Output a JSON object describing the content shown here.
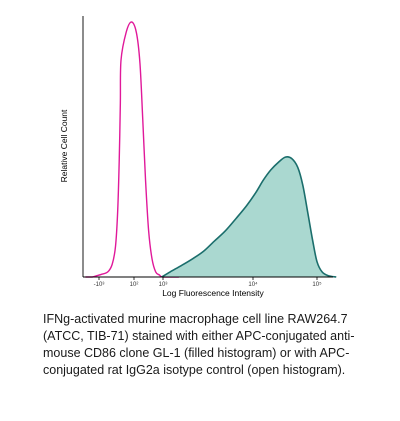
{
  "chart_data": {
    "type": "area",
    "xlabel": "Log Fluorescence Intensity",
    "ylabel": "Relative Cell Count",
    "x_scale": "biexponential",
    "x_ticks": [
      {
        "value": -1000,
        "label": "-10³"
      },
      {
        "value": 100,
        "label": "10²"
      },
      {
        "value": 1000,
        "label": "10³"
      },
      {
        "value": 10000,
        "label": "10⁴"
      },
      {
        "value": 100000,
        "label": "10⁵"
      }
    ],
    "ylim": [
      0,
      1
    ],
    "grid": false,
    "legend": "none",
    "series": [
      {
        "style": "open",
        "color": "#e0199a",
        "x": [
          -2800,
          -1900,
          -1300,
          -900,
          -600,
          -400,
          -250,
          -150,
          -80,
          -30,
          0,
          40,
          80,
          120,
          160,
          200,
          250,
          320,
          420,
          560,
          750,
          1000,
          1500
        ],
        "y": [
          0.0,
          0.0,
          0.005,
          0.01,
          0.02,
          0.05,
          0.12,
          0.26,
          0.46,
          0.68,
          0.85,
          0.96,
          1.0,
          0.96,
          0.84,
          0.62,
          0.38,
          0.18,
          0.07,
          0.02,
          0.008,
          0.0,
          0.0
        ]
      },
      {
        "style": "filled",
        "color": "#1b6e6c",
        "fill": "#aad8d0",
        "x": [
          900,
          1200,
          1600,
          2100,
          2800,
          3700,
          4900,
          6500,
          8500,
          11000,
          14500,
          19000,
          25000,
          32000,
          40000,
          50000,
          60000,
          72000,
          86000,
          100000,
          120000,
          150000,
          200000
        ],
        "y": [
          0.0,
          0.02,
          0.045,
          0.07,
          0.1,
          0.14,
          0.18,
          0.23,
          0.28,
          0.33,
          0.38,
          0.42,
          0.45,
          0.47,
          0.465,
          0.43,
          0.36,
          0.25,
          0.14,
          0.06,
          0.02,
          0.005,
          0.0
        ]
      }
    ]
  },
  "caption": {
    "text": "IFNg-activated murine macrophage cell line RAW264.7 (ATCC, TIB-71) stained with either APC-conjugated anti-mouse CD86 clone GL-1 (filled histogram) or with APC-conjugated rat IgG2a isotype control (open histogram)."
  }
}
